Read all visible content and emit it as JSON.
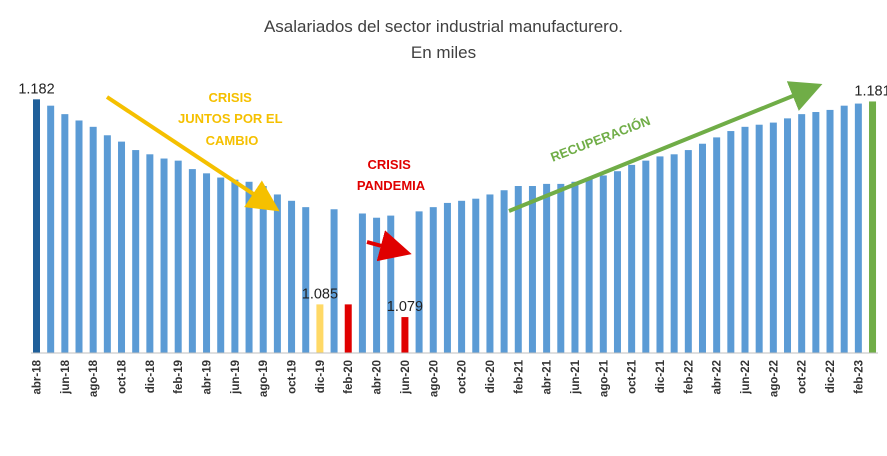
{
  "chart_data": {
    "type": "bar",
    "title": "Asalariados del sector industrial manufacturero.",
    "subtitle": "En miles",
    "xlabel": "",
    "ylabel": "",
    "ylim": [
      1062,
      1185
    ],
    "grid": false,
    "legend": "none",
    "tick_labels": [
      "abr-18",
      "jun-18",
      "ago-18",
      "oct-18",
      "dic-18",
      "feb-19",
      "abr-19",
      "jun-19",
      "ago-19",
      "oct-19",
      "dic-19",
      "feb-20",
      "abr-20",
      "jun-20",
      "ago-20",
      "oct-20",
      "dic-20",
      "feb-21",
      "abr-21",
      "jun-21",
      "ago-21",
      "oct-21",
      "dic-21",
      "feb-22",
      "abr-22",
      "jun-22",
      "ago-22",
      "oct-22",
      "dic-22",
      "feb-23"
    ],
    "categories": [
      "abr-18",
      "may-18",
      "jun-18",
      "jul-18",
      "ago-18",
      "sep-18",
      "oct-18",
      "nov-18",
      "dic-18",
      "ene-19",
      "feb-19",
      "mar-19",
      "abr-19",
      "may-19",
      "jun-19",
      "jul-19",
      "ago-19",
      "sep-19",
      "oct-19",
      "nov-19",
      "dic-19",
      "ene-20",
      "feb-20",
      "mar-20",
      "abr-20",
      "may-20",
      "jun-20",
      "jul-20",
      "ago-20",
      "sep-20",
      "oct-20",
      "nov-20",
      "dic-20",
      "ene-21",
      "feb-21",
      "mar-21",
      "abr-21",
      "may-21",
      "jun-21",
      "jul-21",
      "ago-21",
      "sep-21",
      "oct-21",
      "nov-21",
      "dic-21",
      "ene-22",
      "feb-22",
      "mar-22",
      "abr-22",
      "may-22",
      "jun-22",
      "jul-22",
      "ago-22",
      "sep-22",
      "oct-22",
      "nov-22",
      "dic-22",
      "ene-23",
      "feb-23",
      "mar-23"
    ],
    "values": [
      1182,
      1179,
      1175,
      1172,
      1169,
      1165,
      1162,
      1158,
      1156,
      1154,
      1153,
      1149,
      1147,
      1145,
      1144,
      1143,
      1141,
      1137,
      1134,
      1131,
      1085,
      1130,
      1085,
      1128,
      1126,
      1127,
      1079,
      1129,
      1131,
      1133,
      1134,
      1135,
      1137,
      1139,
      1141,
      1141,
      1142,
      1142,
      1143,
      1145,
      1146,
      1148,
      1151,
      1153,
      1155,
      1156,
      1158,
      1161,
      1164,
      1167,
      1169,
      1170,
      1171,
      1173,
      1175,
      1176,
      1177,
      1179,
      1180,
      1181
    ],
    "data_labels": [
      {
        "category": "abr-18",
        "text": "1.182"
      },
      {
        "category": "dic-19",
        "text": "1.085"
      },
      {
        "category": "jun-20",
        "text": "1.079"
      },
      {
        "category": "mar-23",
        "text": "1.181"
      }
    ],
    "colors": {
      "default": "#5b9bd5",
      "first": "#1f5f9a",
      "highlight_yellow": "#ffd966",
      "highlight_red": "#e00000",
      "last": "#70ad47"
    },
    "bar_colors": {
      "abr-18": "#1f5f9a",
      "dic-19": "#ffd966",
      "feb-20": "#e00000",
      "jun-20": "#e00000",
      "mar-23": "#70ad47"
    },
    "annotations": [
      {
        "lines": [
          "CRISIS",
          "JUNTOS  POR EL",
          "CAMBIO"
        ],
        "color": "#f5c000"
      },
      {
        "lines": [
          "CRISIS",
          "PANDEMIA"
        ],
        "color": "#e00000"
      },
      {
        "lines": [
          "RECUPERACIÓN"
        ],
        "color": "#70ad47"
      }
    ]
  }
}
